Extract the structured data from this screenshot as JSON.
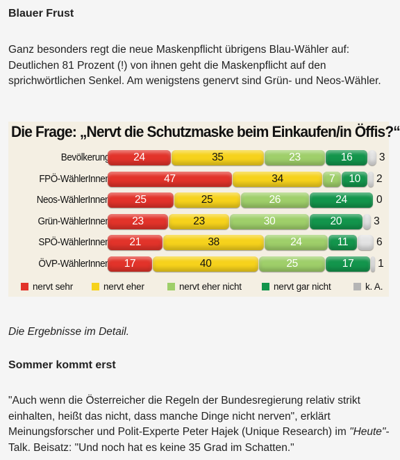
{
  "article": {
    "heading1": "Blauer Frust",
    "paragraph1": "Ganz besonders regt die neue Maskenpflicht übrigens Blau-Wähler auf: Deutlichen 81 Prozent (!) von ihnen geht die Maskenpflicht auf den sprichwörtlichen Senkel. Am wenigstens genervt sind Grün- und Neos-Wähler.",
    "caption": "Die Ergebnisse im Detail.",
    "heading2": "Sommer kommt erst",
    "quote_part1": "\"Auch wenn die Österreicher die Regeln der Bundesregierung relativ strikt einhalten, heißt das nicht, dass manche Dinge nicht nerven\", erklärt Meinungsforscher und Polit-Experte Peter Hajek (Unique Research) im ",
    "quote_heute": "\"Heute\"",
    "quote_part2": "-Talk. Beisatz: \"Und noch hat es keine 35 Grad im Schatten.\""
  },
  "chart_data": {
    "type": "bar",
    "orientation": "horizontal-stacked-100",
    "title": "Die Frage: „Nervt die Schutzmaske beim Einkaufen/in Öffis?“",
    "categories": [
      "Bevölkerung",
      "FPÖ-WählerInnen",
      "Neos-WählerInnen",
      "Grün-WählerInnen",
      "SPÖ-WählerInnen",
      "ÖVP-WählerInnen"
    ],
    "series": [
      {
        "name": "nervt sehr",
        "color": "#e2332a",
        "text_color": "#ffffff",
        "values": [
          24,
          47,
          25,
          23,
          21,
          17
        ]
      },
      {
        "name": "nervt eher",
        "color": "#f6d21c",
        "text_color": "#111111",
        "values": [
          35,
          34,
          25,
          23,
          38,
          40
        ]
      },
      {
        "name": "nervt eher nicht",
        "color": "#9fcf6a",
        "text_color": "#ffffff",
        "values": [
          23,
          7,
          26,
          30,
          24,
          25
        ]
      },
      {
        "name": "nervt gar nicht",
        "color": "#13954c",
        "text_color": "#ffffff",
        "values": [
          16,
          10,
          24,
          20,
          11,
          17
        ]
      },
      {
        "name": "k. A.",
        "color": "#e3e3e3",
        "text_color": "#111111",
        "values": [
          3,
          2,
          0,
          3,
          6,
          1
        ]
      }
    ],
    "legend_position": "bottom",
    "grid": false
  }
}
